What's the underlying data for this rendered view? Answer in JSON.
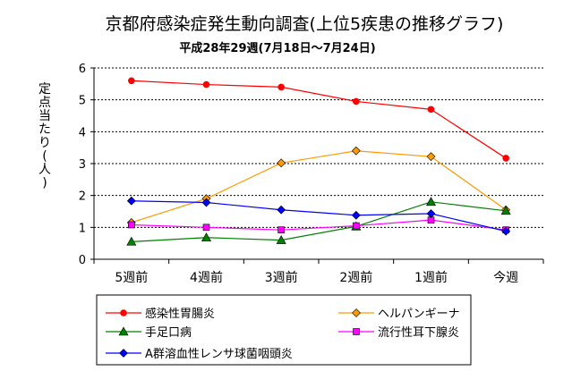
{
  "chart_data": {
    "type": "line",
    "title": "京都府感染症発生動向調査(上位5疾患の推移グラフ)",
    "subtitle": "平成28年29週(7月18日～7月24日)",
    "ylabel": "定点当たり(人)",
    "xlabel": "",
    "categories": [
      "5週前",
      "4週前",
      "3週前",
      "2週前",
      "1週前",
      "今週"
    ],
    "ylim": [
      0,
      6
    ],
    "yticks": [
      0,
      1,
      2,
      3,
      4,
      5,
      6
    ],
    "grid": true,
    "legend_position": "bottom",
    "series": [
      {
        "name": "感染性胃腸炎",
        "color": "#ff0000",
        "marker": "circle",
        "values": [
          5.6,
          5.48,
          5.4,
          4.95,
          4.7,
          3.17
        ]
      },
      {
        "name": "ヘルパンギーナ",
        "color": "#ff9900",
        "marker": "diamond",
        "values": [
          1.15,
          1.9,
          3.02,
          3.4,
          3.22,
          1.55
        ]
      },
      {
        "name": "手足口病",
        "color": "#008000",
        "marker": "triangle",
        "values": [
          0.55,
          0.68,
          0.6,
          1.03,
          1.8,
          1.52
        ]
      },
      {
        "name": "流行性耳下腺炎",
        "color": "#ff00ff",
        "marker": "square",
        "values": [
          1.08,
          1.0,
          0.92,
          1.05,
          1.23,
          0.92
        ]
      },
      {
        "name": "A群溶血性レンサ球菌咽頭炎",
        "color": "#0000ff",
        "marker": "diamond",
        "values": [
          1.83,
          1.78,
          1.55,
          1.38,
          1.43,
          0.88
        ]
      }
    ]
  }
}
